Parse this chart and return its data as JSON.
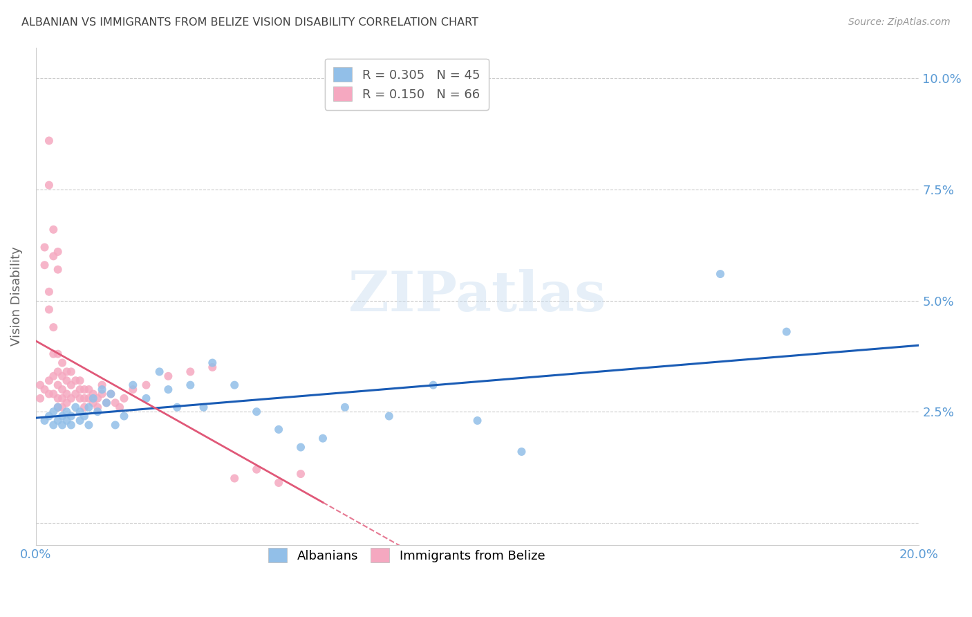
{
  "title": "ALBANIAN VS IMMIGRANTS FROM BELIZE VISION DISABILITY CORRELATION CHART",
  "source": "Source: ZipAtlas.com",
  "ylabel": "Vision Disability",
  "xlabel": "",
  "xlim": [
    0.0,
    0.2
  ],
  "ylim": [
    -0.005,
    0.107
  ],
  "yticks": [
    0.0,
    0.025,
    0.05,
    0.075,
    0.1
  ],
  "ytick_labels": [
    "",
    "2.5%",
    "5.0%",
    "7.5%",
    "10.0%"
  ],
  "xticks": [
    0.0,
    0.05,
    0.1,
    0.15,
    0.2
  ],
  "xtick_labels": [
    "0.0%",
    "",
    "",
    "",
    "20.0%"
  ],
  "watermark": "ZIPatlas",
  "blue_color": "#92bfe8",
  "pink_color": "#f5a8c0",
  "blue_line_color": "#1a5cb5",
  "pink_line_color": "#e05878",
  "grid_color": "#cccccc",
  "title_color": "#404040",
  "axis_color": "#5b9bd5",
  "blue_scatter_x": [
    0.002,
    0.003,
    0.004,
    0.004,
    0.005,
    0.005,
    0.006,
    0.006,
    0.007,
    0.007,
    0.008,
    0.008,
    0.009,
    0.01,
    0.01,
    0.011,
    0.012,
    0.012,
    0.013,
    0.014,
    0.015,
    0.016,
    0.017,
    0.018,
    0.02,
    0.022,
    0.025,
    0.028,
    0.03,
    0.032,
    0.035,
    0.038,
    0.04,
    0.045,
    0.05,
    0.055,
    0.06,
    0.065,
    0.07,
    0.08,
    0.09,
    0.1,
    0.11,
    0.155,
    0.17
  ],
  "blue_scatter_y": [
    0.023,
    0.024,
    0.022,
    0.025,
    0.023,
    0.026,
    0.022,
    0.024,
    0.023,
    0.025,
    0.022,
    0.024,
    0.026,
    0.023,
    0.025,
    0.024,
    0.026,
    0.022,
    0.028,
    0.025,
    0.03,
    0.027,
    0.029,
    0.022,
    0.024,
    0.031,
    0.028,
    0.034,
    0.03,
    0.026,
    0.031,
    0.026,
    0.036,
    0.031,
    0.025,
    0.021,
    0.017,
    0.019,
    0.026,
    0.024,
    0.031,
    0.023,
    0.016,
    0.056,
    0.043
  ],
  "pink_scatter_x": [
    0.001,
    0.001,
    0.002,
    0.002,
    0.002,
    0.003,
    0.003,
    0.003,
    0.003,
    0.004,
    0.004,
    0.004,
    0.004,
    0.005,
    0.005,
    0.005,
    0.005,
    0.005,
    0.006,
    0.006,
    0.006,
    0.006,
    0.006,
    0.007,
    0.007,
    0.007,
    0.007,
    0.008,
    0.008,
    0.008,
    0.009,
    0.009,
    0.01,
    0.01,
    0.01,
    0.011,
    0.011,
    0.011,
    0.012,
    0.012,
    0.013,
    0.013,
    0.014,
    0.014,
    0.015,
    0.015,
    0.016,
    0.017,
    0.018,
    0.019,
    0.02,
    0.022,
    0.025,
    0.03,
    0.035,
    0.04,
    0.045,
    0.05,
    0.055,
    0.06,
    0.003,
    0.003,
    0.004,
    0.004,
    0.005,
    0.005
  ],
  "pink_scatter_y": [
    0.031,
    0.028,
    0.062,
    0.058,
    0.03,
    0.052,
    0.048,
    0.032,
    0.029,
    0.044,
    0.038,
    0.033,
    0.029,
    0.038,
    0.034,
    0.031,
    0.028,
    0.026,
    0.036,
    0.033,
    0.03,
    0.028,
    0.026,
    0.034,
    0.032,
    0.029,
    0.027,
    0.034,
    0.031,
    0.028,
    0.032,
    0.029,
    0.032,
    0.03,
    0.028,
    0.03,
    0.028,
    0.026,
    0.03,
    0.028,
    0.029,
    0.027,
    0.028,
    0.026,
    0.031,
    0.029,
    0.027,
    0.029,
    0.027,
    0.026,
    0.028,
    0.03,
    0.031,
    0.033,
    0.034,
    0.035,
    0.01,
    0.012,
    0.009,
    0.011,
    0.086,
    0.076,
    0.066,
    0.06,
    0.057,
    0.061
  ]
}
